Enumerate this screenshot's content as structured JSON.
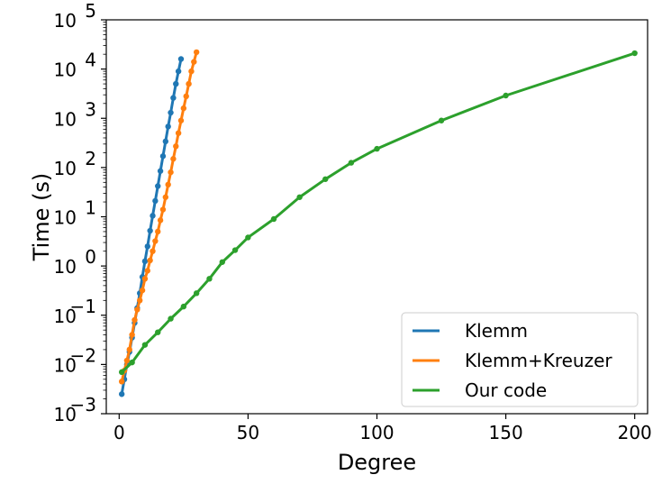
{
  "chart_data": {
    "type": "line",
    "xlabel": "Degree",
    "ylabel": "Time (s)",
    "xlim": [
      -5,
      205
    ],
    "ylim": [
      0.001,
      100000
    ],
    "yscale": "log",
    "x_ticks": [
      0,
      50,
      100,
      150,
      200
    ],
    "y_ticks": [
      {
        "value": 0.001,
        "base": "10",
        "exp": "−3"
      },
      {
        "value": 0.01,
        "base": "10",
        "exp": "−2"
      },
      {
        "value": 0.1,
        "base": "10",
        "exp": "−1"
      },
      {
        "value": 1,
        "base": "10",
        "exp": "0"
      },
      {
        "value": 10,
        "base": "10",
        "exp": "1"
      },
      {
        "value": 100,
        "base": "10",
        "exp": "2"
      },
      {
        "value": 1000,
        "base": "10",
        "exp": "3"
      },
      {
        "value": 10000,
        "base": "10",
        "exp": "4"
      },
      {
        "value": 100000,
        "base": "10",
        "exp": "5"
      }
    ],
    "grid": false,
    "legend_position": "bottom-right",
    "series": [
      {
        "name": "Klemm",
        "color": "#1f77b4",
        "x": [
          1,
          2,
          3,
          4,
          5,
          6,
          7,
          8,
          9,
          10,
          11,
          12,
          13,
          14,
          15,
          16,
          17,
          18,
          19,
          20,
          21,
          22,
          23,
          24
        ],
        "y": [
          0.0025,
          0.005,
          0.01,
          0.018,
          0.035,
          0.07,
          0.14,
          0.28,
          0.6,
          1.25,
          2.5,
          5.2,
          10.5,
          21,
          42,
          85,
          170,
          340,
          680,
          1300,
          2600,
          5000,
          9000,
          16000
        ]
      },
      {
        "name": "Klemm+Kreuzer",
        "color": "#ff7f0e",
        "x": [
          1,
          2,
          3,
          4,
          5,
          6,
          7,
          8,
          9,
          10,
          11,
          12,
          13,
          14,
          15,
          16,
          17,
          18,
          19,
          20,
          21,
          22,
          23,
          24,
          25,
          26,
          27,
          28,
          29,
          30
        ],
        "y": [
          0.0045,
          0.0075,
          0.012,
          0.02,
          0.04,
          0.08,
          0.13,
          0.2,
          0.32,
          0.55,
          0.8,
          1.3,
          2.0,
          3.2,
          5.0,
          8.5,
          14,
          25,
          45,
          80,
          150,
          270,
          500,
          900,
          1600,
          2800,
          5000,
          9000,
          14000,
          22000
        ]
      },
      {
        "name": "Our code",
        "color": "#2ca02c",
        "x": [
          1,
          5,
          10,
          15,
          20,
          25,
          30,
          35,
          40,
          45,
          50,
          60,
          70,
          80,
          90,
          100,
          125,
          150,
          200
        ],
        "y": [
          0.007,
          0.011,
          0.025,
          0.045,
          0.085,
          0.15,
          0.28,
          0.55,
          1.2,
          2.1,
          3.8,
          9,
          25,
          58,
          125,
          240,
          900,
          2900,
          21000
        ]
      }
    ]
  }
}
